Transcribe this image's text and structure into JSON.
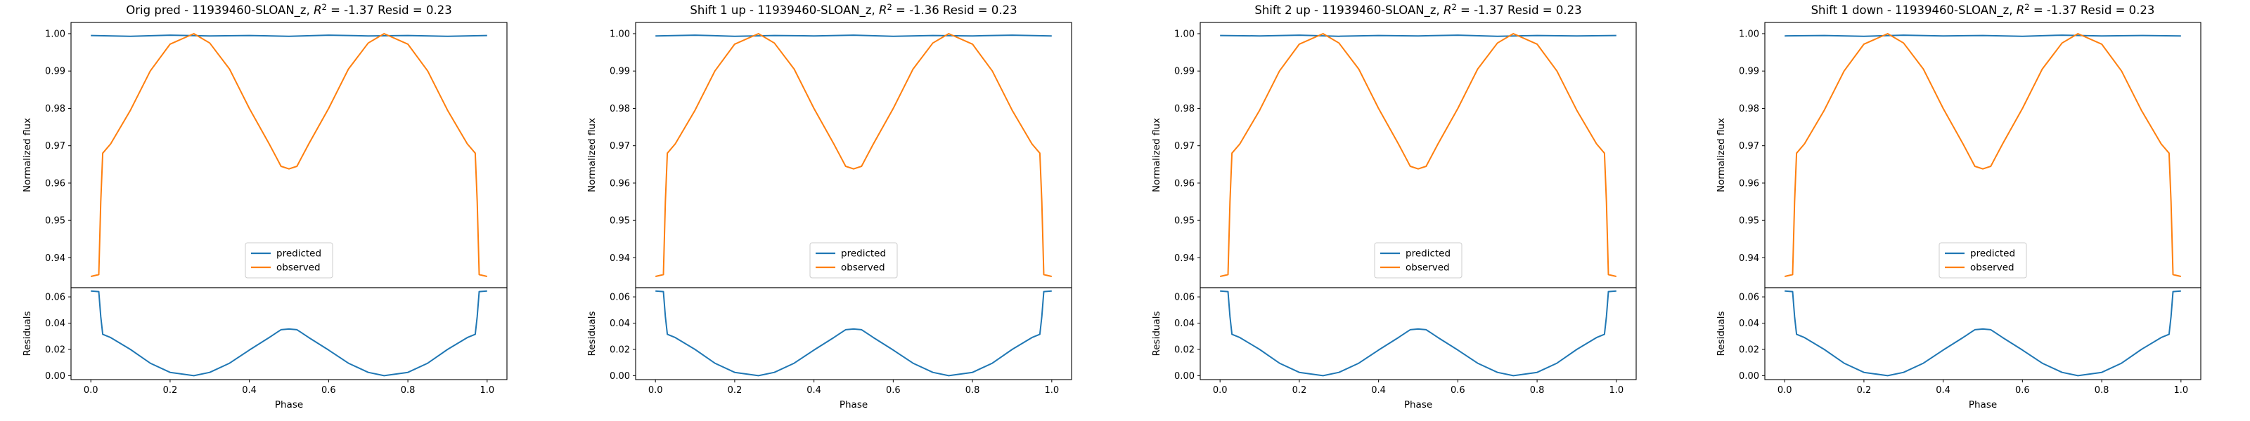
{
  "chart_data": [
    {
      "type": "line",
      "title": "Orig pred - 11939460-SLOAN_z, R² = -1.37 Resid = 0.23",
      "title_parts": {
        "prefix": "Orig pred - 11939460-SLOAN_z, ",
        "r2_value": "-1.37",
        "suffix": " Resid = 0.23"
      },
      "top": {
        "ylabel": "Normalized flux",
        "ylim": [
          0.932,
          1.003
        ],
        "yticks": [
          "0.94",
          "0.95",
          "0.96",
          "0.97",
          "0.98",
          "0.99",
          "1.00"
        ],
        "legend": {
          "position": "lower center",
          "entries": [
            "predicted",
            "observed"
          ]
        },
        "series": [
          {
            "name": "predicted",
            "color": "#1f77b4",
            "x": [
              0.0,
              0.1,
              0.2,
              0.3,
              0.4,
              0.5,
              0.6,
              0.7,
              0.8,
              0.9,
              1.0
            ],
            "y": [
              0.9995,
              0.9993,
              0.9996,
              0.9994,
              0.9995,
              0.9993,
              0.9996,
              0.9994,
              0.9995,
              0.9993,
              0.9995
            ]
          },
          {
            "name": "observed",
            "color": "#ff7f0e",
            "x": [
              0.0,
              0.02,
              0.025,
              0.03,
              0.05,
              0.1,
              0.15,
              0.2,
              0.26,
              0.3,
              0.35,
              0.4,
              0.45,
              0.47,
              0.48,
              0.5,
              0.52,
              0.53,
              0.55,
              0.6,
              0.65,
              0.7,
              0.74,
              0.8,
              0.85,
              0.9,
              0.95,
              0.97,
              0.975,
              0.98,
              1.0
            ],
            "y": [
              0.935,
              0.9355,
              0.955,
              0.968,
              0.9705,
              0.9795,
              0.99,
              0.9972,
              1.0,
              0.9975,
              0.9905,
              0.98,
              0.9705,
              0.9665,
              0.9645,
              0.9638,
              0.9645,
              0.9665,
              0.9705,
              0.98,
              0.9905,
              0.9975,
              1.0,
              0.9972,
              0.99,
              0.9795,
              0.9705,
              0.968,
              0.955,
              0.9355,
              0.935
            ]
          }
        ]
      },
      "bottom": {
        "xlabel": "Phase",
        "ylabel": "Residuals",
        "xlim": [
          -0.05,
          1.05
        ],
        "ylim": [
          -0.003,
          0.067
        ],
        "xticks": [
          "0.0",
          "0.2",
          "0.4",
          "0.6",
          "0.8",
          "1.0"
        ],
        "yticks": [
          "0.00",
          "0.02",
          "0.04",
          "0.06"
        ],
        "series": [
          {
            "name": "residuals",
            "color": "#1f77b4",
            "x": [
              0.0,
              0.02,
              0.025,
              0.03,
              0.05,
              0.1,
              0.15,
              0.2,
              0.26,
              0.3,
              0.35,
              0.4,
              0.45,
              0.47,
              0.48,
              0.5,
              0.52,
              0.53,
              0.55,
              0.6,
              0.65,
              0.7,
              0.74,
              0.8,
              0.85,
              0.9,
              0.95,
              0.97,
              0.975,
              0.98,
              1.0
            ],
            "y": [
              0.0645,
              0.064,
              0.045,
              0.0315,
              0.029,
              0.02,
              0.0095,
              0.0025,
              0.0,
              0.0025,
              0.0095,
              0.0195,
              0.029,
              0.033,
              0.035,
              0.0355,
              0.035,
              0.033,
              0.029,
              0.0195,
              0.0095,
              0.0025,
              0.0,
              0.0025,
              0.0095,
              0.02,
              0.029,
              0.0315,
              0.045,
              0.064,
              0.0645
            ]
          }
        ]
      }
    },
    {
      "type": "line",
      "title": "Shift 1 up - 11939460-SLOAN_z, R² = -1.36 Resid = 0.23",
      "title_parts": {
        "prefix": "Shift 1 up - 11939460-SLOAN_z, ",
        "r2_value": "-1.36",
        "suffix": " Resid = 0.23"
      },
      "top": {
        "ylabel": "Normalized flux",
        "ylim": [
          0.932,
          1.003
        ],
        "yticks": [
          "0.94",
          "0.95",
          "0.96",
          "0.97",
          "0.98",
          "0.99",
          "1.00"
        ],
        "legend": {
          "position": "lower center",
          "entries": [
            "predicted",
            "observed"
          ]
        },
        "series": [
          {
            "name": "predicted",
            "color": "#1f77b4",
            "x": [
              0.0,
              0.1,
              0.2,
              0.3,
              0.4,
              0.5,
              0.6,
              0.7,
              0.8,
              0.9,
              1.0
            ],
            "y": [
              0.9994,
              0.9996,
              0.9993,
              0.9995,
              0.9994,
              0.9996,
              0.9993,
              0.9995,
              0.9994,
              0.9996,
              0.9994
            ]
          },
          {
            "name": "observed",
            "color": "#ff7f0e",
            "x": [
              0.0,
              0.02,
              0.025,
              0.03,
              0.05,
              0.1,
              0.15,
              0.2,
              0.26,
              0.3,
              0.35,
              0.4,
              0.45,
              0.47,
              0.48,
              0.5,
              0.52,
              0.53,
              0.55,
              0.6,
              0.65,
              0.7,
              0.74,
              0.8,
              0.85,
              0.9,
              0.95,
              0.97,
              0.975,
              0.98,
              1.0
            ],
            "y": [
              0.935,
              0.9355,
              0.955,
              0.968,
              0.9705,
              0.9795,
              0.99,
              0.9972,
              1.0,
              0.9975,
              0.9905,
              0.98,
              0.9705,
              0.9665,
              0.9645,
              0.9638,
              0.9645,
              0.9665,
              0.9705,
              0.98,
              0.9905,
              0.9975,
              1.0,
              0.9972,
              0.99,
              0.9795,
              0.9705,
              0.968,
              0.955,
              0.9355,
              0.935
            ]
          }
        ]
      },
      "bottom": {
        "xlabel": "Phase",
        "ylabel": "Residuals",
        "xlim": [
          -0.05,
          1.05
        ],
        "ylim": [
          -0.003,
          0.067
        ],
        "xticks": [
          "0.0",
          "0.2",
          "0.4",
          "0.6",
          "0.8",
          "1.0"
        ],
        "yticks": [
          "0.00",
          "0.02",
          "0.04",
          "0.06"
        ],
        "series": [
          {
            "name": "residuals",
            "color": "#1f77b4",
            "x": [
              0.0,
              0.02,
              0.025,
              0.03,
              0.05,
              0.1,
              0.15,
              0.2,
              0.26,
              0.3,
              0.35,
              0.4,
              0.45,
              0.47,
              0.48,
              0.5,
              0.52,
              0.53,
              0.55,
              0.6,
              0.65,
              0.7,
              0.74,
              0.8,
              0.85,
              0.9,
              0.95,
              0.97,
              0.975,
              0.98,
              1.0
            ],
            "y": [
              0.0645,
              0.064,
              0.045,
              0.0315,
              0.029,
              0.02,
              0.0095,
              0.0025,
              0.0,
              0.0025,
              0.0095,
              0.0195,
              0.029,
              0.033,
              0.035,
              0.0355,
              0.035,
              0.033,
              0.029,
              0.0195,
              0.0095,
              0.0025,
              0.0,
              0.0025,
              0.0095,
              0.02,
              0.029,
              0.0315,
              0.045,
              0.064,
              0.0645
            ]
          }
        ]
      }
    },
    {
      "type": "line",
      "title": "Shift 2 up - 11939460-SLOAN_z, R² = -1.37 Resid = 0.23",
      "title_parts": {
        "prefix": "Shift 2 up - 11939460-SLOAN_z, ",
        "r2_value": "-1.37",
        "suffix": " Resid = 0.23"
      },
      "top": {
        "ylabel": "Normalized flux",
        "ylim": [
          0.932,
          1.003
        ],
        "yticks": [
          "0.94",
          "0.95",
          "0.96",
          "0.97",
          "0.98",
          "0.99",
          "1.00"
        ],
        "legend": {
          "position": "lower center",
          "entries": [
            "predicted",
            "observed"
          ]
        },
        "series": [
          {
            "name": "predicted",
            "color": "#1f77b4",
            "x": [
              0.0,
              0.1,
              0.2,
              0.3,
              0.4,
              0.5,
              0.6,
              0.7,
              0.8,
              0.9,
              1.0
            ],
            "y": [
              0.9995,
              0.9994,
              0.9996,
              0.9993,
              0.9995,
              0.9994,
              0.9996,
              0.9993,
              0.9995,
              0.9994,
              0.9995
            ]
          },
          {
            "name": "observed",
            "color": "#ff7f0e",
            "x": [
              0.0,
              0.02,
              0.025,
              0.03,
              0.05,
              0.1,
              0.15,
              0.2,
              0.26,
              0.3,
              0.35,
              0.4,
              0.45,
              0.47,
              0.48,
              0.5,
              0.52,
              0.53,
              0.55,
              0.6,
              0.65,
              0.7,
              0.74,
              0.8,
              0.85,
              0.9,
              0.95,
              0.97,
              0.975,
              0.98,
              1.0
            ],
            "y": [
              0.935,
              0.9355,
              0.955,
              0.968,
              0.9705,
              0.9795,
              0.99,
              0.9972,
              1.0,
              0.9975,
              0.9905,
              0.98,
              0.9705,
              0.9665,
              0.9645,
              0.9638,
              0.9645,
              0.9665,
              0.9705,
              0.98,
              0.9905,
              0.9975,
              1.0,
              0.9972,
              0.99,
              0.9795,
              0.9705,
              0.968,
              0.955,
              0.9355,
              0.935
            ]
          }
        ]
      },
      "bottom": {
        "xlabel": "Phase",
        "ylabel": "Residuals",
        "xlim": [
          -0.05,
          1.05
        ],
        "ylim": [
          -0.003,
          0.067
        ],
        "xticks": [
          "0.0",
          "0.2",
          "0.4",
          "0.6",
          "0.8",
          "1.0"
        ],
        "yticks": [
          "0.00",
          "0.02",
          "0.04",
          "0.06"
        ],
        "series": [
          {
            "name": "residuals",
            "color": "#1f77b4",
            "x": [
              0.0,
              0.02,
              0.025,
              0.03,
              0.05,
              0.1,
              0.15,
              0.2,
              0.26,
              0.3,
              0.35,
              0.4,
              0.45,
              0.47,
              0.48,
              0.5,
              0.52,
              0.53,
              0.55,
              0.6,
              0.65,
              0.7,
              0.74,
              0.8,
              0.85,
              0.9,
              0.95,
              0.97,
              0.975,
              0.98,
              1.0
            ],
            "y": [
              0.0645,
              0.064,
              0.045,
              0.0315,
              0.029,
              0.02,
              0.0095,
              0.0025,
              0.0,
              0.0025,
              0.0095,
              0.0195,
              0.029,
              0.033,
              0.035,
              0.0355,
              0.035,
              0.033,
              0.029,
              0.0195,
              0.0095,
              0.0025,
              0.0,
              0.0025,
              0.0095,
              0.02,
              0.029,
              0.0315,
              0.045,
              0.064,
              0.0645
            ]
          }
        ]
      }
    },
    {
      "type": "line",
      "title": "Shift 1 down - 11939460-SLOAN_z, R² = -1.37 Resid = 0.23",
      "title_parts": {
        "prefix": "Shift 1 down - 11939460-SLOAN_z, ",
        "r2_value": "-1.37",
        "suffix": " Resid = 0.23"
      },
      "top": {
        "ylabel": "Normalized flux",
        "ylim": [
          0.932,
          1.003
        ],
        "yticks": [
          "0.94",
          "0.95",
          "0.96",
          "0.97",
          "0.98",
          "0.99",
          "1.00"
        ],
        "legend": {
          "position": "lower center",
          "entries": [
            "predicted",
            "observed"
          ]
        },
        "series": [
          {
            "name": "predicted",
            "color": "#1f77b4",
            "x": [
              0.0,
              0.1,
              0.2,
              0.3,
              0.4,
              0.5,
              0.6,
              0.7,
              0.8,
              0.9,
              1.0
            ],
            "y": [
              0.9994,
              0.9995,
              0.9993,
              0.9996,
              0.9994,
              0.9995,
              0.9993,
              0.9996,
              0.9994,
              0.9995,
              0.9994
            ]
          },
          {
            "name": "observed",
            "color": "#ff7f0e",
            "x": [
              0.0,
              0.02,
              0.025,
              0.03,
              0.05,
              0.1,
              0.15,
              0.2,
              0.26,
              0.3,
              0.35,
              0.4,
              0.45,
              0.47,
              0.48,
              0.5,
              0.52,
              0.53,
              0.55,
              0.6,
              0.65,
              0.7,
              0.74,
              0.8,
              0.85,
              0.9,
              0.95,
              0.97,
              0.975,
              0.98,
              1.0
            ],
            "y": [
              0.935,
              0.9355,
              0.955,
              0.968,
              0.9705,
              0.9795,
              0.99,
              0.9972,
              1.0,
              0.9975,
              0.9905,
              0.98,
              0.9705,
              0.9665,
              0.9645,
              0.9638,
              0.9645,
              0.9665,
              0.9705,
              0.98,
              0.9905,
              0.9975,
              1.0,
              0.9972,
              0.99,
              0.9795,
              0.9705,
              0.968,
              0.955,
              0.9355,
              0.935
            ]
          }
        ]
      },
      "bottom": {
        "xlabel": "Phase",
        "ylabel": "Residuals",
        "xlim": [
          -0.05,
          1.05
        ],
        "ylim": [
          -0.003,
          0.067
        ],
        "xticks": [
          "0.0",
          "0.2",
          "0.4",
          "0.6",
          "0.8",
          "1.0"
        ],
        "yticks": [
          "0.00",
          "0.02",
          "0.04",
          "0.06"
        ],
        "series": [
          {
            "name": "residuals",
            "color": "#1f77b4",
            "x": [
              0.0,
              0.02,
              0.025,
              0.03,
              0.05,
              0.1,
              0.15,
              0.2,
              0.26,
              0.3,
              0.35,
              0.4,
              0.45,
              0.47,
              0.48,
              0.5,
              0.52,
              0.53,
              0.55,
              0.6,
              0.65,
              0.7,
              0.74,
              0.8,
              0.85,
              0.9,
              0.95,
              0.97,
              0.975,
              0.98,
              1.0
            ],
            "y": [
              0.0645,
              0.064,
              0.045,
              0.0315,
              0.029,
              0.02,
              0.0095,
              0.0025,
              0.0,
              0.0025,
              0.0095,
              0.0195,
              0.029,
              0.033,
              0.035,
              0.0355,
              0.035,
              0.033,
              0.029,
              0.0195,
              0.0095,
              0.0025,
              0.0,
              0.0025,
              0.0095,
              0.02,
              0.029,
              0.0315,
              0.045,
              0.064,
              0.0645
            ]
          }
        ]
      }
    }
  ]
}
